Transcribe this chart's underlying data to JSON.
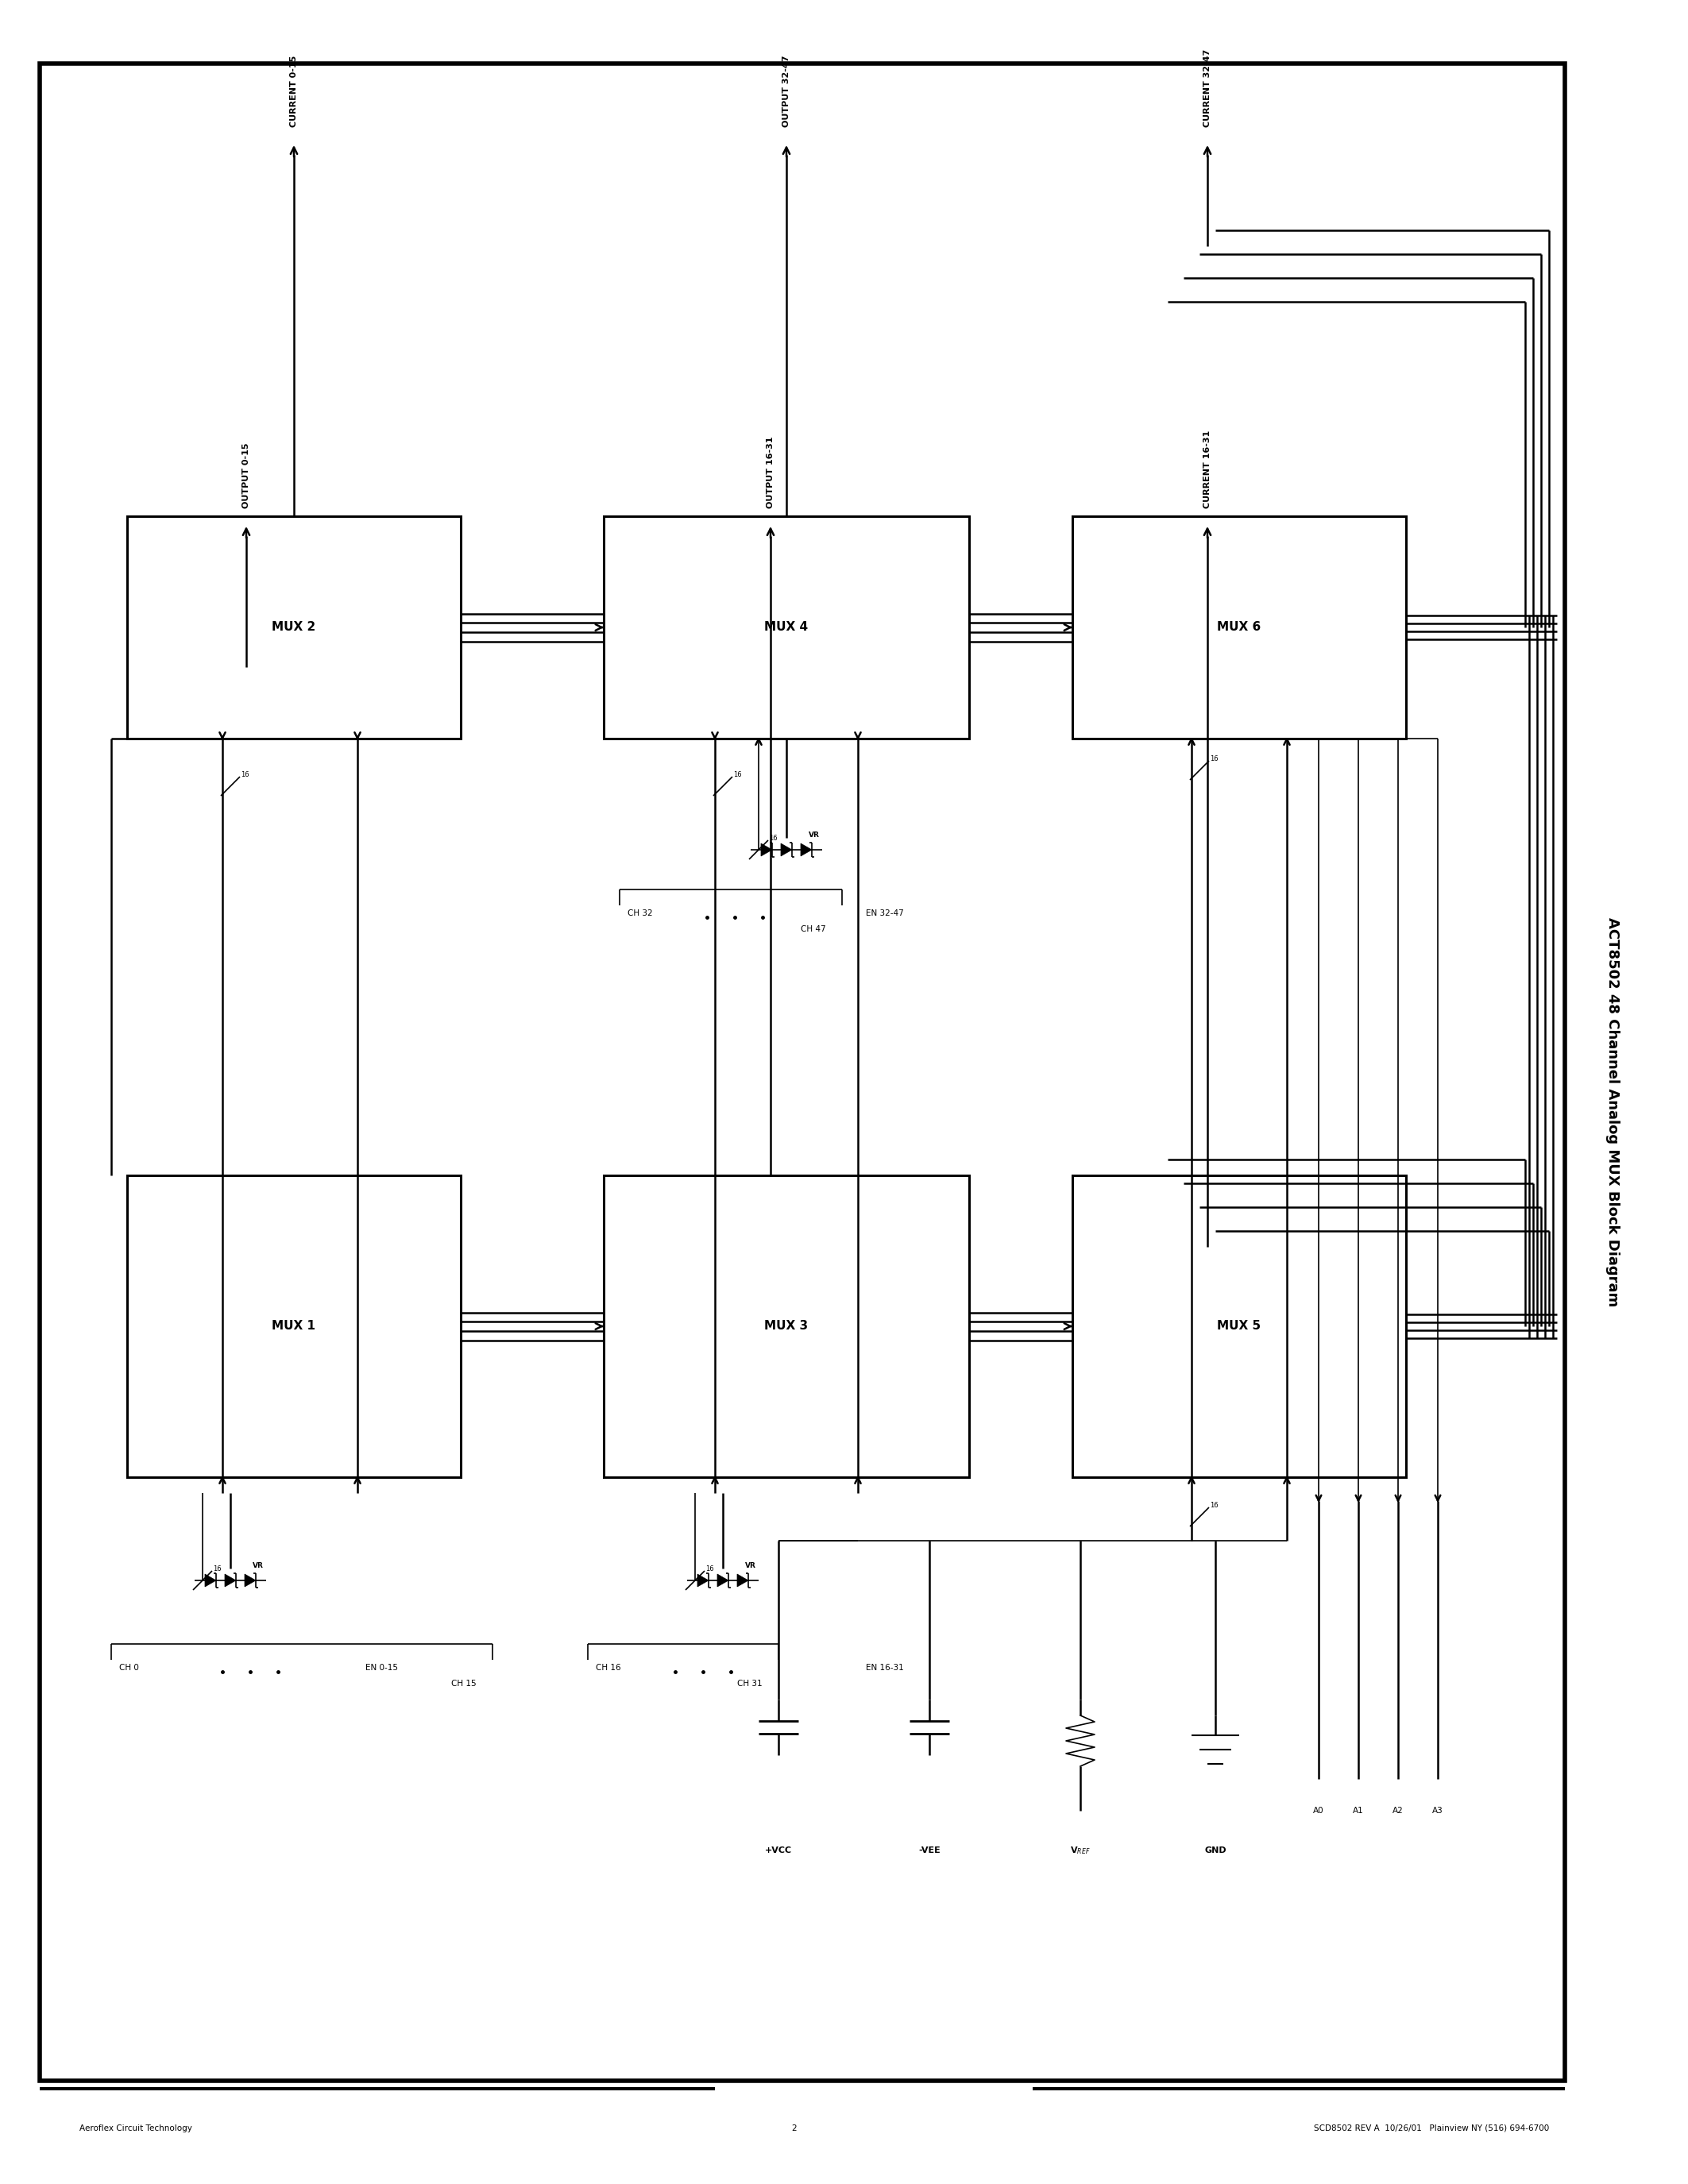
{
  "page_title": "ACT8502 48 Channel Analog MUX Block Diagram",
  "footer_left": "Aeroflex Circuit Technology",
  "footer_center": "2",
  "footer_right": "SCD8502 REV A  10/26/01   Plainview NY (516) 694-6700",
  "bg_color": "#ffffff"
}
